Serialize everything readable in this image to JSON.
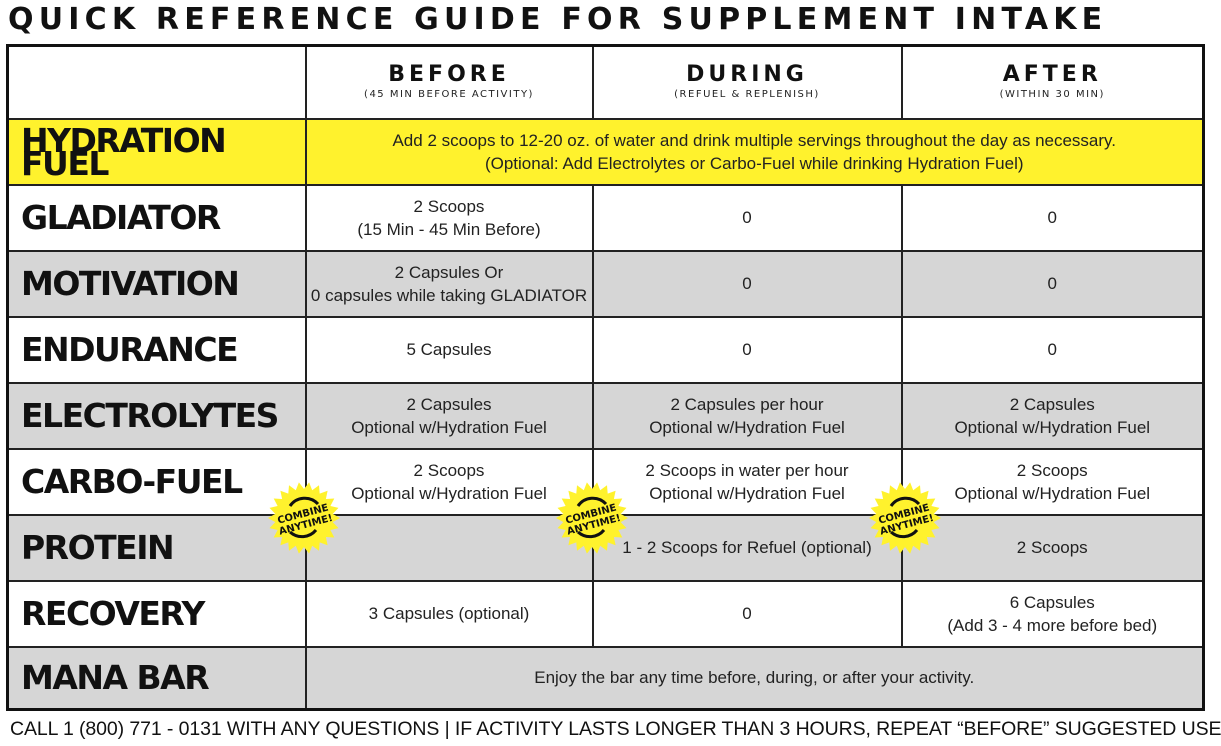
{
  "title": "QUICK REFERENCE GUIDE FOR SUPPLEMENT INTAKE",
  "columns": [
    {
      "label": "BEFORE",
      "sub": "(45 MIN BEFORE ACTIVITY)"
    },
    {
      "label": "DURING",
      "sub": "(REFUEL & REPLENISH)"
    },
    {
      "label": "AFTER",
      "sub": "(WITHIN 30 MIN)"
    }
  ],
  "rows": {
    "hydration": {
      "name": "HYDRATION FUEL",
      "line1": "Add 2 scoops to 12-20 oz. of water and drink multiple servings throughout the day as necessary.",
      "line2": "(Optional: Add Electrolytes or Carbo-Fuel while drinking Hydration Fuel)"
    },
    "gladiator": {
      "name": "GLADIATOR",
      "before1": "2 Scoops",
      "before2": "(15 Min - 45 Min Before)",
      "during": "0",
      "after": "0"
    },
    "motivation": {
      "name": "MOTIVATION",
      "before1": "2 Capsules Or",
      "before2": "0 capsules while taking GLADIATOR",
      "during": "0",
      "after": "0"
    },
    "endurance": {
      "name": "ENDURANCE",
      "before": "5 Capsules",
      "during": "0",
      "after": "0"
    },
    "electrolytes": {
      "name": "ELECTROLYTES",
      "before1": "2 Capsules",
      "before2": "Optional w/Hydration Fuel",
      "during1": "2 Capsules per hour",
      "during2": "Optional w/Hydration Fuel",
      "after1": "2 Capsules",
      "after2": "Optional w/Hydration Fuel"
    },
    "carbo": {
      "name": "CARBO-FUEL",
      "before1": "2 Scoops",
      "before2": "Optional w/Hydration Fuel",
      "during1": "2 Scoops in water per hour",
      "during2": "Optional w/Hydration Fuel",
      "after1": "2 Scoops",
      "after2": "Optional w/Hydration Fuel"
    },
    "protein": {
      "name": "PROTEIN",
      "before": "",
      "during": "1 - 2 Scoops for Refuel (optional)",
      "after": "2 Scoops"
    },
    "recovery": {
      "name": "RECOVERY",
      "before": "3 Capsules (optional)",
      "during": "0",
      "after1": "6 Capsules",
      "after2": "(Add 3 - 4 more before bed)"
    },
    "mana": {
      "name": "MANA BAR",
      "text": "Enjoy the bar any time before, during, or after your activity."
    }
  },
  "badge": {
    "line1": "COMBINE",
    "line2": "ANYTIME!",
    "color": "#fff22d",
    "icon": "circular-arrows-icon"
  },
  "footer": "CALL 1 (800) 771 - 0131 WITH ANY QUESTIONS | IF ACTIVITY LASTS LONGER THAN 3 HOURS, REPEAT “BEFORE” SUGGESTED USE",
  "colors": {
    "highlight": "#fff22d",
    "stripe": "#d6d6d6",
    "border": "#222222"
  }
}
